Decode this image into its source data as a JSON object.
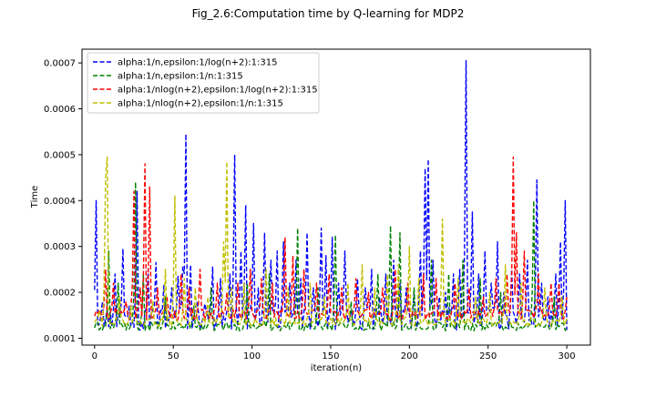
{
  "chart_data": {
    "type": "line",
    "title": "Fig_2.6:Computation time by Q-learning for MDP2",
    "xlabel": "iteration(n)",
    "ylabel": "Time",
    "xlim": [
      -8,
      315
    ],
    "ylim": [
      8.5e-05,
      0.00073
    ],
    "xticks": [
      0,
      50,
      100,
      150,
      200,
      250,
      300
    ],
    "yticks": [
      0.0001,
      0.0002,
      0.0003,
      0.0004,
      0.0005,
      0.0006,
      0.0007
    ],
    "xtick_labels": [
      "0",
      "50",
      "100",
      "150",
      "200",
      "250",
      "300"
    ],
    "ytick_labels": [
      "0.0001",
      "0.0002",
      "0.0003",
      "0.0004",
      "0.0005",
      "0.0006",
      "0.0007"
    ],
    "grid": false,
    "legend_position": "upper-left",
    "series": [
      {
        "name": "alpha:1/n,epsilon:1/log(n+2):1:315",
        "color": "#0000ff",
        "baseline": 0.00014,
        "amplitude": 2.5e-05,
        "peaks": [
          [
            1,
            0.0004
          ],
          [
            5,
            0.00018
          ],
          [
            13,
            0.00024
          ],
          [
            18,
            0.000295
          ],
          [
            22,
            0.00017
          ],
          [
            27,
            0.00042
          ],
          [
            34,
            0.00025
          ],
          [
            39,
            0.000265
          ],
          [
            44,
            0.000215
          ],
          [
            49,
            0.00021
          ],
          [
            53,
            0.000235
          ],
          [
            56,
            0.000255
          ],
          [
            58,
            0.000545
          ],
          [
            61,
            0.00026
          ],
          [
            65,
            0.00018
          ],
          [
            70,
            0.000175
          ],
          [
            75,
            0.000255
          ],
          [
            80,
            0.00023
          ],
          [
            86,
            0.00024
          ],
          [
            89,
            0.0005
          ],
          [
            93,
            0.00029
          ],
          [
            96,
            0.00039
          ],
          [
            101,
            0.00035
          ],
          [
            104,
            0.00021
          ],
          [
            108,
            0.00033
          ],
          [
            112,
            0.00027
          ],
          [
            116,
            0.00029
          ],
          [
            120,
            0.00031
          ],
          [
            124,
            0.00022
          ],
          [
            128,
            0.00027
          ],
          [
            131,
            0.00023
          ],
          [
            135,
            0.00033
          ],
          [
            139,
            0.00021
          ],
          [
            144,
            0.00034
          ],
          [
            147,
            0.00028
          ],
          [
            151,
            0.00032
          ],
          [
            155,
            0.00022
          ],
          [
            159,
            0.00029
          ],
          [
            163,
            0.00016
          ],
          [
            167,
            0.00023
          ],
          [
            172,
            0.00021
          ],
          [
            176,
            0.00025
          ],
          [
            181,
            0.00019
          ],
          [
            185,
            0.00024
          ],
          [
            190,
            0.00027
          ],
          [
            194,
            0.00022
          ],
          [
            198,
            0.00021
          ],
          [
            203,
            0.0002
          ],
          [
            207,
            0.00029
          ],
          [
            210,
            0.00047
          ],
          [
            212,
            0.00049
          ],
          [
            215,
            0.00027
          ],
          [
            219,
            0.00019
          ],
          [
            223,
            0.0002
          ],
          [
            228,
            0.00024
          ],
          [
            232,
            0.00025
          ],
          [
            236,
            0.000705
          ],
          [
            240,
            0.000375
          ],
          [
            244,
            0.00024
          ],
          [
            248,
            0.00029
          ],
          [
            252,
            0.00022
          ],
          [
            256,
            0.00031
          ],
          [
            260,
            0.0002
          ],
          [
            265,
            0.00025
          ],
          [
            270,
            0.00024
          ],
          [
            275,
            0.00027
          ],
          [
            281,
            0.000445
          ],
          [
            284,
            0.00022
          ],
          [
            288,
            0.00019
          ],
          [
            293,
            0.00024
          ],
          [
            296,
            0.00031
          ],
          [
            299,
            0.0004
          ]
        ]
      },
      {
        "name": "alpha:1/n,epsilon:1/n:1:315",
        "color": "#008000",
        "baseline": 0.000125,
        "amplitude": 1e-05,
        "peaks": [
          [
            9,
            0.00029
          ],
          [
            15,
            0.00022
          ],
          [
            26,
            0.00044
          ],
          [
            31,
            0.00024
          ],
          [
            45,
            0.00019
          ],
          [
            63,
            0.00017
          ],
          [
            74,
            0.00021
          ],
          [
            97,
            0.00022
          ],
          [
            111,
            0.00024
          ],
          [
            129,
            0.00034
          ],
          [
            142,
            0.00021
          ],
          [
            153,
            0.000325
          ],
          [
            163,
            0.00018
          ],
          [
            180,
            0.00024
          ],
          [
            188,
            0.000345
          ],
          [
            194,
            0.00033
          ],
          [
            203,
            0.00021
          ],
          [
            214,
            0.00027
          ],
          [
            225,
            0.00024
          ],
          [
            234,
            0.00027
          ],
          [
            245,
            0.00023
          ],
          [
            258,
            0.0002
          ],
          [
            279,
            0.0004
          ],
          [
            292,
            0.00019
          ]
        ]
      },
      {
        "name": "alpha:1/nlog(n+2),epsilon:1/log(n+2):1:315",
        "color": "#ff0000",
        "baseline": 0.00015,
        "amplitude": 1.2e-05,
        "peaks": [
          [
            7,
            0.00025
          ],
          [
            12,
            0.00022
          ],
          [
            20,
            0.00018
          ],
          [
            25,
            0.00042
          ],
          [
            29,
            0.00021
          ],
          [
            32,
            0.00048
          ],
          [
            35,
            0.00043
          ],
          [
            40,
            0.00021
          ],
          [
            46,
            0.00019
          ],
          [
            55,
            0.00024
          ],
          [
            60,
            0.00021
          ],
          [
            67,
            0.00025
          ],
          [
            78,
            0.00022
          ],
          [
            84,
            0.0002
          ],
          [
            91,
            0.00022
          ],
          [
            99,
            0.00025
          ],
          [
            106,
            0.00023
          ],
          [
            113,
            0.00022
          ],
          [
            121,
            0.00032
          ],
          [
            126,
            0.00028
          ],
          [
            133,
            0.00025
          ],
          [
            141,
            0.00022
          ],
          [
            149,
            0.00024
          ],
          [
            157,
            0.00021
          ],
          [
            166,
            0.00023
          ],
          [
            174,
            0.0002
          ],
          [
            183,
            0.00021
          ],
          [
            191,
            0.00025
          ],
          [
            199,
            0.00022
          ],
          [
            209,
            0.00024
          ],
          [
            217,
            0.00023
          ],
          [
            229,
            0.00022
          ],
          [
            238,
            0.00021
          ],
          [
            247,
            0.00019
          ],
          [
            255,
            0.00023
          ],
          [
            262,
            0.00024
          ],
          [
            266,
            0.000495
          ],
          [
            268,
            0.00033
          ],
          [
            273,
            0.00029
          ],
          [
            282,
            0.00024
          ],
          [
            290,
            0.00022
          ],
          [
            295,
            0.00022
          ],
          [
            300,
            0.00019
          ]
        ]
      },
      {
        "name": "alpha:1/nlog(n+2),epsilon:1/n:1:315",
        "color": "#bfbf00",
        "baseline": 0.000135,
        "amplitude": 1e-05,
        "peaks": [
          [
            3,
            0.00016
          ],
          [
            7,
            0.00045
          ],
          [
            8,
            0.000495
          ],
          [
            16,
            0.00019
          ],
          [
            23,
            0.00017
          ],
          [
            37,
            0.00018
          ],
          [
            45,
            0.00025
          ],
          [
            51,
            0.00041
          ],
          [
            57,
            0.00023
          ],
          [
            64,
            0.00021
          ],
          [
            72,
            0.00019
          ],
          [
            82,
            0.00031
          ],
          [
            84,
            0.000485
          ],
          [
            87,
            0.00021
          ],
          [
            95,
            0.00022
          ],
          [
            109,
            0.00025
          ],
          [
            123,
            0.00021
          ],
          [
            137,
            0.00022
          ],
          [
            146,
            0.00019
          ],
          [
            161,
            0.00022
          ],
          [
            170,
            0.00026
          ],
          [
            178,
            0.00021
          ],
          [
            186,
            0.00024
          ],
          [
            193,
            0.00026
          ],
          [
            200,
            0.0003
          ],
          [
            206,
            0.00023
          ],
          [
            221,
            0.00036
          ],
          [
            231,
            0.00023
          ],
          [
            242,
            0.00019
          ],
          [
            251,
            0.0002
          ],
          [
            261,
            0.00026
          ],
          [
            271,
            0.00022
          ],
          [
            286,
            0.00021
          ],
          [
            297,
            0.00019
          ]
        ]
      }
    ]
  }
}
